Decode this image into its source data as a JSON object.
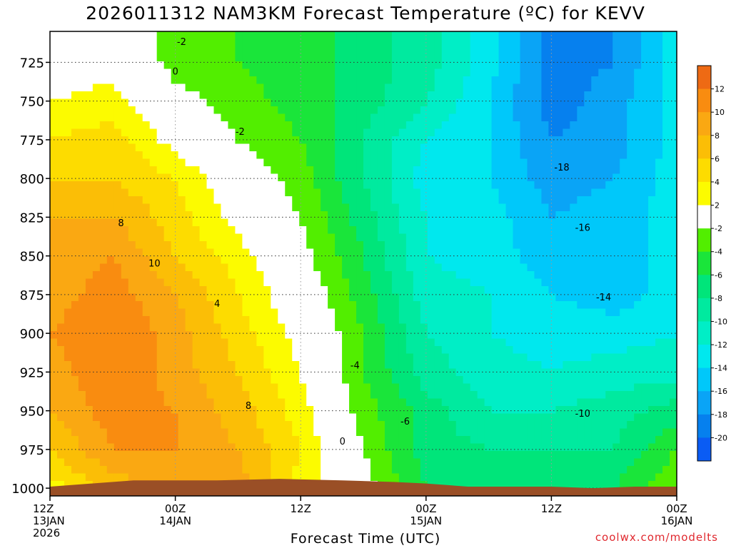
{
  "title": "2026011312 NAM3KM Forecast Temperature (ºC) for KEVV",
  "credit": "coolwx.com/modelts",
  "chart_data": {
    "type": "heatmap",
    "subtype": "time-pressure cross-section, filled contours",
    "model": "NAM3KM",
    "station": "KEVV",
    "init": "2026011312",
    "xlabel": "Forecast Time (UTC)",
    "ylabel": "",
    "x_units": "hours since 12Z 13JAN 2026",
    "xlim": [
      0,
      60
    ],
    "ylim": [
      1005,
      705
    ],
    "y_ticks": [
      725,
      750,
      775,
      800,
      825,
      850,
      875,
      900,
      925,
      950,
      975,
      1000
    ],
    "x_ticks": [
      {
        "hour": 0,
        "lines": [
          "12Z",
          "13JAN",
          "2026"
        ]
      },
      {
        "hour": 12,
        "lines": [
          "00Z",
          "14JAN"
        ]
      },
      {
        "hour": 24,
        "lines": [
          "12Z"
        ]
      },
      {
        "hour": 36,
        "lines": [
          "00Z",
          "15JAN"
        ]
      },
      {
        "hour": 48,
        "lines": [
          "12Z"
        ]
      },
      {
        "hour": 60,
        "lines": [
          "00Z",
          "16JAN"
        ]
      }
    ],
    "grid": true,
    "colorbar": {
      "position": "right",
      "tick_labels": [
        "12",
        "10",
        "8",
        "6",
        "4",
        "2",
        "-2",
        "-4",
        "-6",
        "-8",
        "-10",
        "-12",
        "-14",
        "-16",
        "-18",
        "-20"
      ],
      "bands": [
        {
          "low": 12,
          "high": 14,
          "color": "#ee6a14"
        },
        {
          "low": 10,
          "high": 12,
          "color": "#f98c10"
        },
        {
          "low": 8,
          "high": 10,
          "color": "#faa812"
        },
        {
          "low": 6,
          "high": 8,
          "color": "#fbbe06"
        },
        {
          "low": 4,
          "high": 6,
          "color": "#fddc00"
        },
        {
          "low": 2,
          "high": 4,
          "color": "#fcfb00"
        },
        {
          "low": -2,
          "high": 2,
          "color": "#ffffff"
        },
        {
          "low": -4,
          "high": -2,
          "color": "#52ee00"
        },
        {
          "low": -6,
          "high": -4,
          "color": "#1ae53a"
        },
        {
          "low": -8,
          "high": -6,
          "color": "#00e57a"
        },
        {
          "low": -10,
          "high": -8,
          "color": "#00ea9f"
        },
        {
          "low": -12,
          "high": -10,
          "color": "#00eec6"
        },
        {
          "low": -14,
          "high": -12,
          "color": "#00e8ee"
        },
        {
          "low": -16,
          "high": -14,
          "color": "#00c8fa"
        },
        {
          "low": -18,
          "high": -16,
          "color": "#0aa4f6"
        },
        {
          "low": -20,
          "high": -18,
          "color": "#0680ee"
        },
        {
          "low": -22,
          "high": -20,
          "color": "#0a5cf4"
        }
      ]
    },
    "surface_pressure": [
      [
        0,
        999
      ],
      [
        4,
        997
      ],
      [
        8,
        995
      ],
      [
        12,
        995
      ],
      [
        16,
        995
      ],
      [
        22,
        994
      ],
      [
        28,
        995
      ],
      [
        33,
        996
      ],
      [
        36,
        997
      ],
      [
        40,
        999
      ],
      [
        48,
        999
      ],
      [
        52,
        1000
      ],
      [
        56,
        999
      ],
      [
        60,
        999
      ]
    ],
    "surface_color": "#9a4f26",
    "temperature_grid": {
      "hours": [
        0,
        6,
        12,
        18,
        24,
        30,
        36,
        42,
        48,
        54,
        60
      ],
      "levels": [
        1000,
        975,
        950,
        925,
        900,
        875,
        850,
        825,
        800,
        775,
        750,
        725
      ],
      "values": [
        [
          3,
          7,
          8,
          9,
          3,
          -1,
          -6,
          -7,
          -6,
          -6,
          -2
        ],
        [
          6,
          10,
          10,
          8,
          4,
          -2,
          -7,
          -8,
          -8,
          -8,
          -4
        ],
        [
          8,
          11,
          10,
          7,
          3,
          -3,
          -7,
          -10,
          -10,
          -9,
          -7
        ],
        [
          9,
          12,
          9,
          6,
          2,
          -4,
          -9,
          -11,
          -12,
          -11,
          -11
        ],
        [
          10,
          12,
          9,
          5,
          1,
          -4,
          -10,
          -12,
          -13,
          -13,
          -12
        ],
        [
          9,
          11,
          8,
          4,
          0,
          -5,
          -11,
          -12,
          -14,
          -15,
          -13
        ],
        [
          9,
          10,
          6,
          3,
          -1,
          -6,
          -12,
          -13,
          -15,
          -15,
          -13
        ],
        [
          8,
          8,
          5,
          1,
          -2,
          -7,
          -12,
          -13,
          -16,
          -15,
          -13
        ],
        [
          6,
          6,
          4,
          0,
          -3,
          -8,
          -13,
          -14,
          -17,
          -16,
          -13
        ],
        [
          4,
          5,
          1,
          -2,
          -4,
          -8,
          -12,
          -14,
          -18,
          -17,
          -13
        ],
        [
          2,
          3,
          -1,
          -3,
          -5,
          -7,
          -10,
          -14,
          -19,
          -17,
          -13
        ],
        [
          0,
          1,
          -3,
          -4,
          -5,
          -7,
          -9,
          -13,
          -19,
          -18,
          -13
        ]
      ]
    },
    "contour_labels": [
      {
        "text": "-2",
        "hour": 12.6,
        "p": 712
      },
      {
        "text": "0",
        "hour": 12.0,
        "p": 731
      },
      {
        "text": "-2",
        "hour": 18.2,
        "p": 770
      },
      {
        "text": "8",
        "hour": 6.8,
        "p": 829
      },
      {
        "text": "10",
        "hour": 10.0,
        "p": 855
      },
      {
        "text": "4",
        "hour": 16.0,
        "p": 881
      },
      {
        "text": "8",
        "hour": 19.0,
        "p": 947
      },
      {
        "text": "-4",
        "hour": 29.2,
        "p": 921
      },
      {
        "text": "0",
        "hour": 28.0,
        "p": 970
      },
      {
        "text": "-6",
        "hour": 34.0,
        "p": 957
      },
      {
        "text": "-10",
        "hour": 51.0,
        "p": 952
      },
      {
        "text": "-14",
        "hour": 53.0,
        "p": 877
      },
      {
        "text": "-16",
        "hour": 51.0,
        "p": 832
      },
      {
        "text": "-18",
        "hour": 49.0,
        "p": 793
      }
    ]
  }
}
